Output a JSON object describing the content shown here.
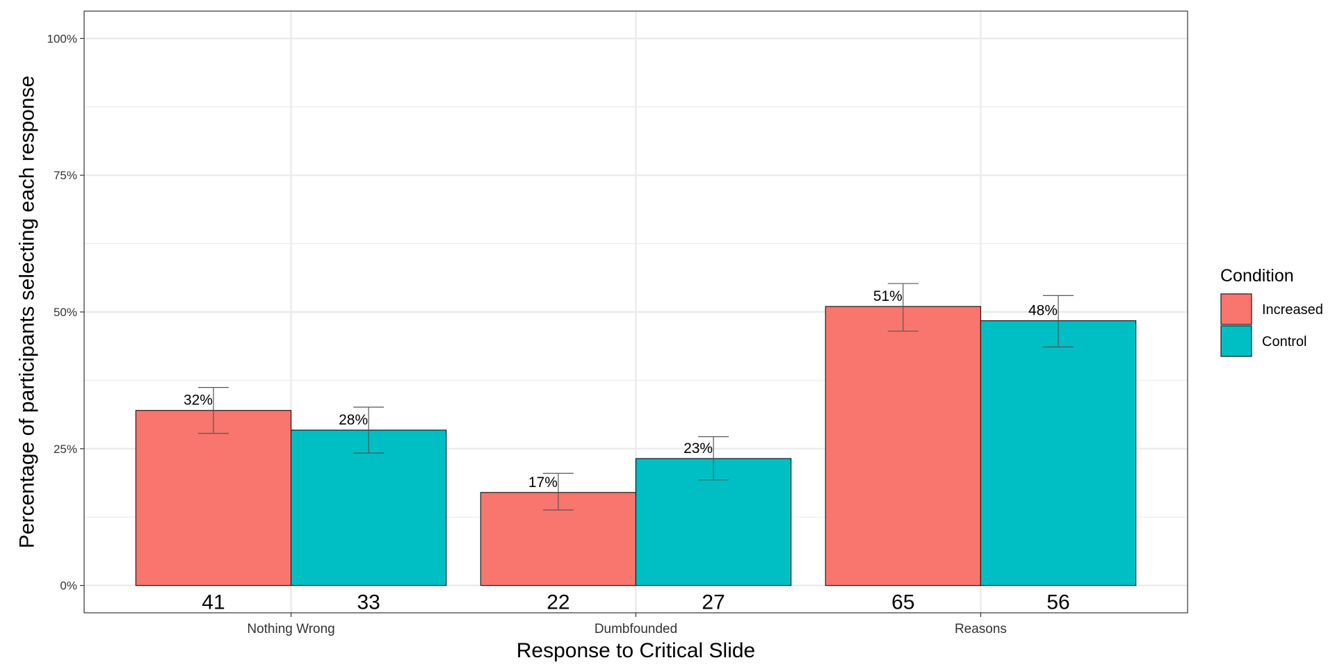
{
  "chart_data": {
    "type": "bar",
    "xlabel": "Response to Critical Slide",
    "ylabel": "Percentage of participants selecting each response",
    "ylim": [
      -0.05,
      1.05
    ],
    "y_ticks": [
      0,
      0.25,
      0.5,
      0.75,
      1.0
    ],
    "y_tick_labels": [
      "0%",
      "25%",
      "50%",
      "75%",
      "100%"
    ],
    "categories": [
      "Nothing Wrong",
      "Dumbfounded",
      "Reasons"
    ],
    "grid": true,
    "legend_position": "right",
    "legend_title": "Condition",
    "series": [
      {
        "name": "Increased",
        "color": "#F8766D",
        "values": [
          0.32,
          0.17,
          0.51
        ],
        "labels": [
          "32%",
          "17%",
          "51%"
        ],
        "counts": [
          "41",
          "22",
          "65"
        ],
        "error_low": [
          0.278,
          0.138,
          0.465
        ],
        "error_high": [
          0.362,
          0.205,
          0.552
        ]
      },
      {
        "name": "Control",
        "color": "#00BFC4",
        "values": [
          0.284,
          0.232,
          0.484
        ],
        "labels": [
          "28%",
          "23%",
          "48%"
        ],
        "counts": [
          "33",
          "27",
          "56"
        ],
        "error_low": [
          0.242,
          0.193,
          0.436
        ],
        "error_high": [
          0.326,
          0.272,
          0.53
        ]
      }
    ]
  }
}
